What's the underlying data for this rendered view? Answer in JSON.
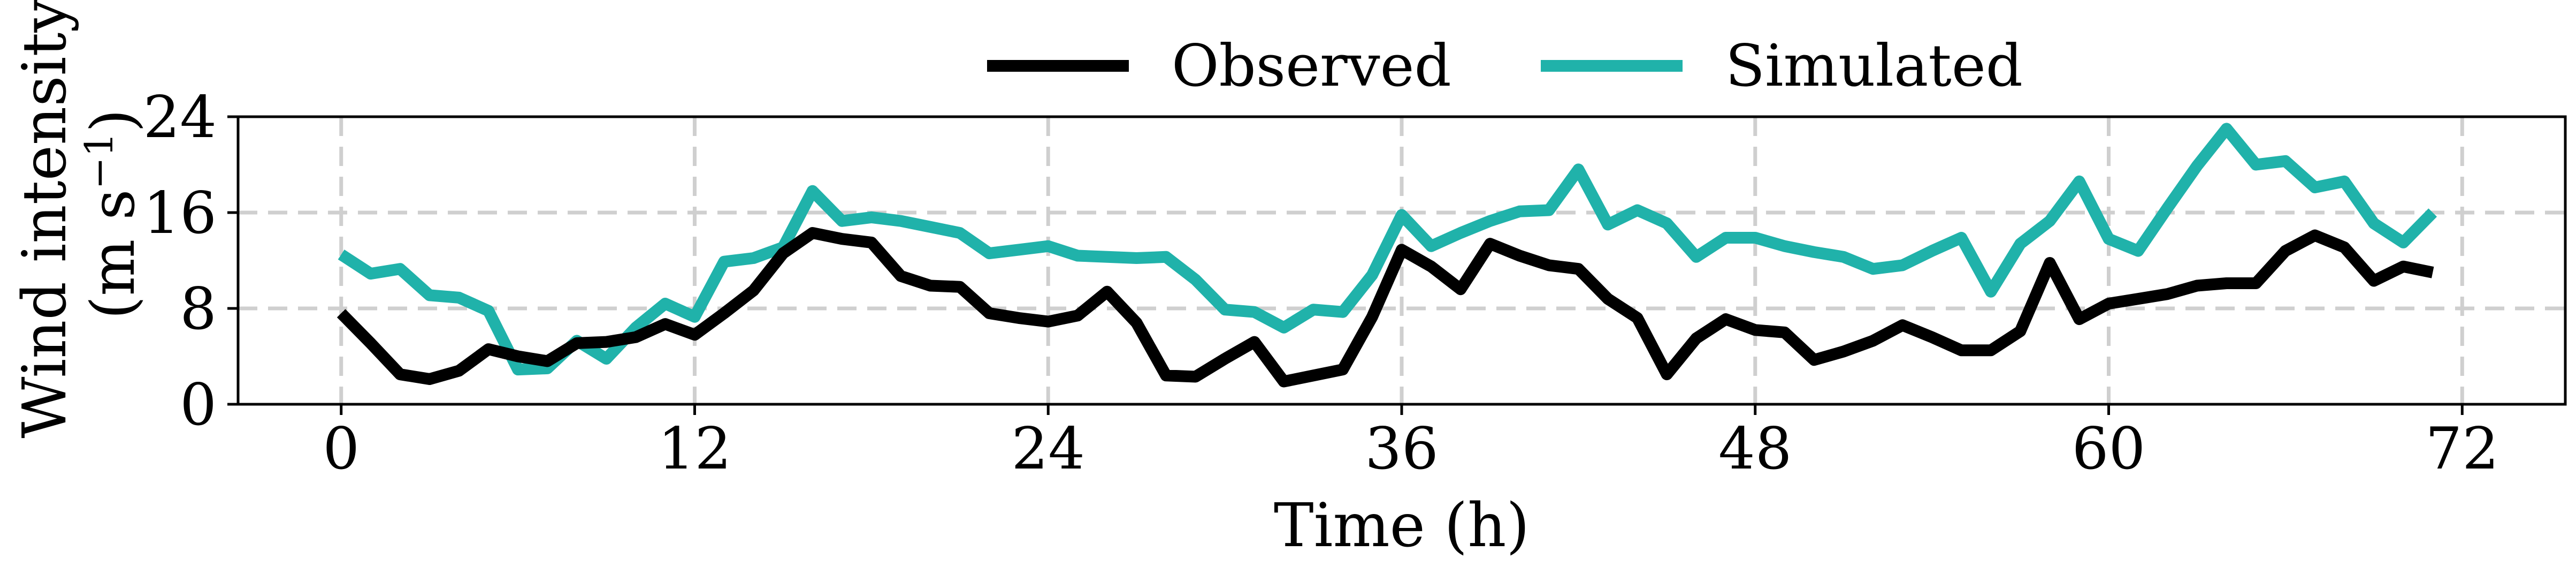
{
  "chart_data": {
    "type": "line",
    "title": "",
    "xlabel": "Time (h)",
    "ylabel_line1": "Wind intensity",
    "ylabel_line2": "(m s",
    "ylabel_sup": "−1",
    "ylabel_close": ")",
    "xlim": [
      -3.5,
      75.5
    ],
    "ylim": [
      0,
      24
    ],
    "xticks": [
      0,
      12,
      24,
      36,
      48,
      60,
      72
    ],
    "yticks": [
      0,
      8,
      16,
      24
    ],
    "grid": true,
    "legend_position": "top-center",
    "x": [
      0,
      1,
      2,
      3,
      4,
      5,
      6,
      7,
      8,
      9,
      10,
      11,
      12,
      13,
      14,
      15,
      16,
      17,
      18,
      19,
      20,
      21,
      22,
      23,
      24,
      25,
      26,
      27,
      28,
      29,
      30,
      31,
      32,
      33,
      34,
      35,
      36,
      37,
      38,
      39,
      40,
      41,
      42,
      43,
      44,
      45,
      46,
      47,
      48,
      49,
      50,
      51,
      52,
      53,
      54,
      55,
      56,
      57,
      58,
      59,
      60,
      61,
      62,
      63,
      64,
      65,
      66,
      67,
      68,
      69,
      70,
      71
    ],
    "series": [
      {
        "name": "Observed",
        "color": "#000000",
        "values": [
          7.6,
          5.1,
          2.5,
          2.1,
          2.8,
          4.6,
          4.0,
          3.6,
          5.1,
          5.2,
          5.6,
          6.7,
          5.8,
          7.6,
          9.5,
          12.6,
          14.3,
          13.8,
          13.5,
          10.7,
          9.9,
          9.8,
          7.6,
          7.2,
          6.9,
          7.4,
          9.4,
          6.8,
          2.4,
          2.3,
          3.8,
          5.2,
          1.9,
          2.4,
          2.9,
          7.3,
          12.9,
          11.5,
          9.6,
          13.4,
          12.4,
          11.6,
          11.3,
          8.8,
          7.2,
          2.5,
          5.5,
          7.1,
          6.2,
          6.0,
          3.7,
          4.4,
          5.3,
          6.6,
          5.6,
          4.5,
          4.5,
          6.1,
          11.8,
          7.1,
          8.4,
          8.8,
          9.2,
          9.9,
          10.1,
          10.1,
          12.8,
          14.1,
          13.1,
          10.3,
          11.5,
          11.0
        ]
      },
      {
        "name": "Simulated",
        "color": "#20b2aa",
        "values": [
          12.5,
          10.9,
          11.3,
          9.1,
          8.9,
          7.8,
          2.9,
          3.0,
          5.3,
          3.8,
          6.4,
          8.4,
          7.3,
          11.9,
          12.2,
          13.1,
          17.8,
          15.3,
          15.6,
          15.3,
          14.8,
          14.3,
          12.6,
          12.9,
          13.2,
          12.4,
          12.3,
          12.2,
          12.3,
          10.4,
          7.9,
          7.7,
          6.4,
          7.9,
          7.7,
          10.8,
          15.8,
          13.2,
          14.3,
          15.3,
          16.1,
          16.2,
          19.6,
          15.0,
          16.2,
          15.1,
          12.3,
          13.9,
          13.9,
          13.2,
          12.7,
          12.3,
          11.3,
          11.6,
          12.8,
          13.9,
          9.4,
          13.4,
          15.3,
          18.6,
          13.8,
          12.8,
          16.4,
          19.9,
          23.0,
          20.0,
          20.3,
          18.1,
          18.6,
          15.1,
          13.5,
          16.0
        ]
      }
    ]
  }
}
